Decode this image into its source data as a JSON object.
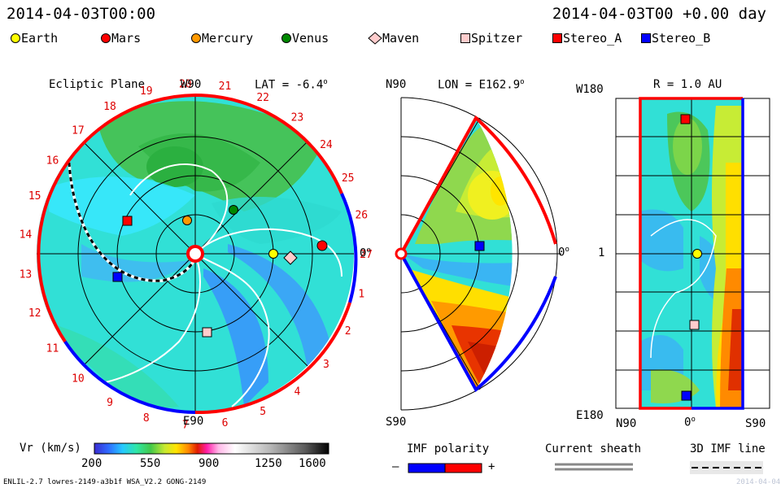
{
  "header": {
    "left_date": "2014-04-03T00:00",
    "right_date": "2014-04-03T00 +0.00 day"
  },
  "legend": [
    {
      "label": "Earth",
      "color": "#ffff00",
      "shape": "circle"
    },
    {
      "label": "Mars",
      "color": "#ff0000",
      "shape": "circle"
    },
    {
      "label": "Mercury",
      "color": "#ff9900",
      "shape": "circle"
    },
    {
      "label": "Venus",
      "color": "#008800",
      "shape": "circle"
    },
    {
      "label": "Maven",
      "color": "#ffcccc",
      "shape": "diamond"
    },
    {
      "label": "Spitzer",
      "color": "#ffcccc",
      "shape": "square"
    },
    {
      "label": "Stereo_A",
      "color": "#ff0000",
      "shape": "square"
    },
    {
      "label": "Stereo_B",
      "color": "#0000ff",
      "shape": "square"
    }
  ],
  "ecliptic": {
    "title": "Ecliptic Plane",
    "lat_text": "LAT = -6.4",
    "top_label": "W90",
    "bottom_label": "E90",
    "right_label": "0",
    "sector_labels": [
      "1",
      "2",
      "3",
      "4",
      "5",
      "6",
      "7",
      "8",
      "9",
      "10",
      "11",
      "12",
      "13",
      "14",
      "15",
      "16",
      "17",
      "18",
      "19",
      "20",
      "21",
      "22",
      "23",
      "24",
      "25",
      "26",
      "27"
    ]
  },
  "meridional": {
    "title_left": "N90",
    "title_lon": "LON = E162.9",
    "bottom_label": "S90",
    "right_label": "0"
  },
  "radial": {
    "title": "R = 1.0 AU",
    "left_top": "W180",
    "left_mid": "1",
    "left_bottom": "E180",
    "bottom_left": "N90",
    "bottom_mid": "0",
    "bottom_right": "S90"
  },
  "colorbar": {
    "label": "Vr (km/s)",
    "ticks": [
      "200",
      "550",
      "900",
      "1250",
      "1600"
    ]
  },
  "imf_polarity": {
    "label": "IMF polarity",
    "minus": "–",
    "plus": "+"
  },
  "current_sheath": {
    "label": "Current sheath"
  },
  "imf_line": {
    "label": "3D IMF line"
  },
  "footer": {
    "left": "ENLIL-2.7 lowres-2149-a3b1f WSA_V2.2 GONG-2149",
    "right": "2014-04-04"
  },
  "colors": {
    "sector_red": "#ff0000",
    "sector_blue": "#0000ff",
    "sector_label": "#dd0000"
  }
}
